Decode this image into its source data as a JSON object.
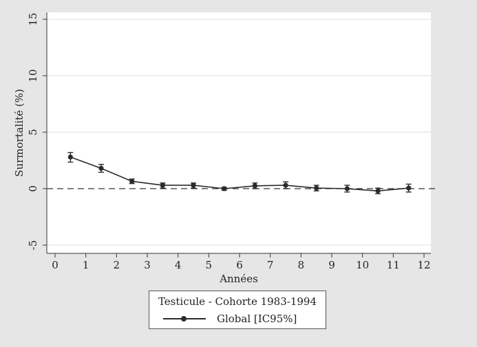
{
  "chart_data": {
    "type": "line",
    "title": "",
    "xlabel": "Années",
    "ylabel": "Surmortalité (%)",
    "xlim": [
      0,
      12
    ],
    "ylim": [
      -5,
      15
    ],
    "xticks": [
      0,
      1,
      2,
      3,
      4,
      5,
      6,
      7,
      8,
      9,
      10,
      11,
      12
    ],
    "yticks": [
      -5,
      0,
      5,
      10,
      15
    ],
    "grid": true,
    "reference_line": {
      "y": 0,
      "style": "dashed"
    },
    "legend": {
      "title": "Testicule - Cohorte 1983-1994",
      "placement": "bottom"
    },
    "series": [
      {
        "name": "Global [IC95%]",
        "x": [
          0.5,
          1.5,
          2.5,
          3.5,
          4.5,
          5.5,
          6.5,
          7.5,
          8.5,
          9.5,
          10.5,
          11.5
        ],
        "y": [
          2.8,
          1.8,
          0.65,
          0.3,
          0.3,
          0.0,
          0.25,
          0.3,
          0.05,
          0.0,
          -0.2,
          0.05
        ],
        "ci_low": [
          2.35,
          1.45,
          0.45,
          0.05,
          0.05,
          -0.15,
          0.0,
          0.0,
          -0.2,
          -0.3,
          -0.45,
          -0.3
        ],
        "ci_high": [
          3.2,
          2.15,
          0.85,
          0.5,
          0.5,
          0.12,
          0.5,
          0.6,
          0.3,
          0.3,
          0.05,
          0.4
        ]
      }
    ],
    "colors": {
      "series": "#2b2b2b",
      "grid": "#dcdcdc",
      "background": "#ffffff",
      "outer": "#e6e6e6"
    }
  }
}
